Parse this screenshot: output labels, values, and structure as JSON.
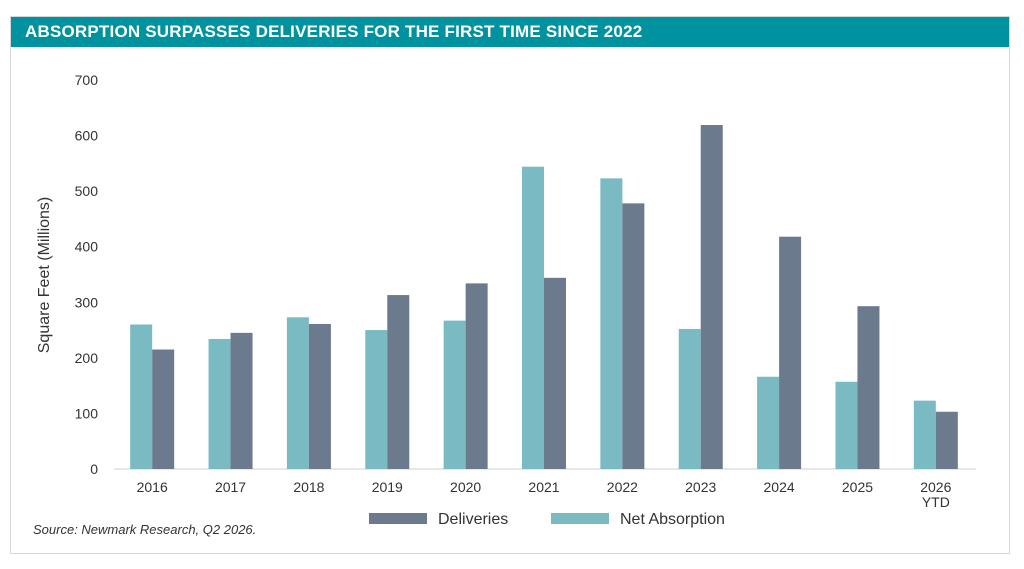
{
  "title": "ABSORPTION SURPASSES DELIVERIES FOR THE FIRST TIME SINCE 2022",
  "source": "Source: Newmark Research, Q2 2026.",
  "colors": {
    "title_bar": "#00929f",
    "deliveries": "#6b7a8c",
    "net_absorption": "#79bac3"
  },
  "chart_data": {
    "type": "bar",
    "title": "ABSORPTION SURPASSES DELIVERIES FOR THE FIRST TIME SINCE 2022",
    "xlabel": "",
    "ylabel": "Square Feet (Millions)",
    "ylim": [
      0,
      700
    ],
    "yticks": [
      0,
      100,
      200,
      300,
      400,
      500,
      600,
      700
    ],
    "grid": false,
    "legend_position": "bottom",
    "categories": [
      "2016",
      "2017",
      "2018",
      "2019",
      "2020",
      "2021",
      "2022",
      "2023",
      "2024",
      "2025",
      "2026 YTD"
    ],
    "series": [
      {
        "name": "Deliveries",
        "values": [
          215,
          245,
          261,
          313,
          334,
          344,
          478,
          619,
          418,
          293,
          103
        ]
      },
      {
        "name": "Net Absorption",
        "values": [
          260,
          234,
          273,
          250,
          267,
          544,
          523,
          252,
          166,
          157,
          123
        ]
      }
    ]
  }
}
